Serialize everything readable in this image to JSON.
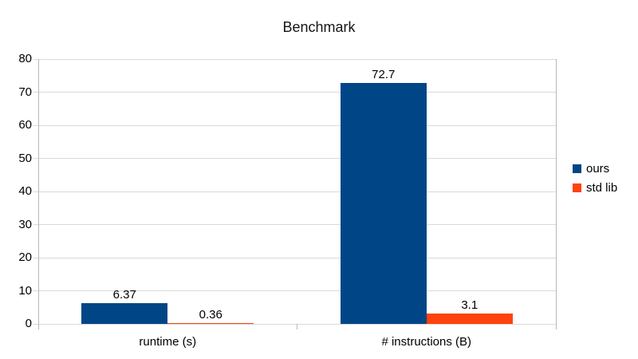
{
  "chart_data": {
    "type": "bar",
    "title": "Benchmark",
    "categories": [
      "runtime (s)",
      "# instructions (B)"
    ],
    "series": [
      {
        "name": "ours",
        "color": "#004586",
        "values": [
          6.37,
          72.7
        ],
        "value_labels": [
          "6.37",
          "72.7"
        ]
      },
      {
        "name": "std lib",
        "color": "#ff420e",
        "values": [
          0.36,
          3.1
        ],
        "value_labels": [
          "0.36",
          "3.1"
        ]
      }
    ],
    "xlabel": "",
    "ylabel": "",
    "ylim": [
      0,
      80
    ],
    "yticks": [
      0,
      10,
      20,
      30,
      40,
      50,
      60,
      70,
      80
    ],
    "ytick_labels": [
      "0",
      "10",
      "20",
      "30",
      "40",
      "50",
      "60",
      "70",
      "80"
    ],
    "grid": true,
    "legend_position": "right",
    "colors": {
      "gridline": "#d9d9d9",
      "axis_line": "#b9b9b9",
      "text": "#000000",
      "title_text": "#141414",
      "background": "#ffffff"
    }
  }
}
